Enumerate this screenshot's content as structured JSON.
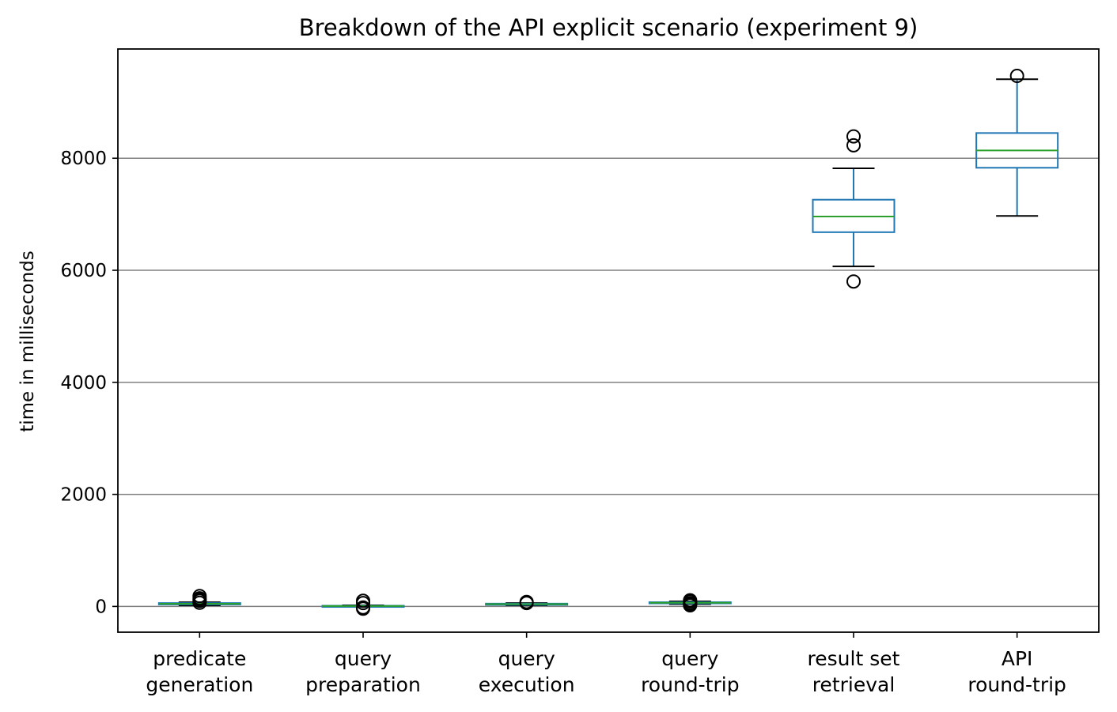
{
  "chart_data": {
    "type": "box",
    "title": "Breakdown of the API explicit scenario (experiment 9)",
    "xlabel": "",
    "ylabel": "time in milliseconds",
    "ylim": [
      -460,
      9950
    ],
    "yticks": [
      0,
      2000,
      4000,
      6000,
      8000
    ],
    "grid": {
      "y": true,
      "x": false
    },
    "colors": {
      "box": "#1f77b4",
      "median": "#2ca02c",
      "whisker": "#1f77b4",
      "cap": "#000000",
      "flier": "#000000",
      "grid": "#808080"
    },
    "categories": [
      [
        "predicate",
        "generation"
      ],
      [
        "query",
        "preparation"
      ],
      [
        "query",
        "execution"
      ],
      [
        "query",
        "round-trip"
      ],
      [
        "result set",
        "retrieval"
      ],
      [
        "API",
        "round-trip"
      ]
    ],
    "boxes": [
      {
        "whisker_low": 20,
        "q1": 35,
        "median": 48,
        "q3": 60,
        "whisker_high": 75,
        "outliers": [
          65,
          100,
          120,
          145,
          185
        ]
      },
      {
        "whisker_low": 2,
        "q1": 5,
        "median": 8,
        "q3": 12,
        "whisker_high": 20,
        "outliers": [
          -40,
          -20,
          60,
          100
        ]
      },
      {
        "whisker_low": 20,
        "q1": 30,
        "median": 40,
        "q3": 50,
        "whisker_high": 60,
        "outliers": [
          60,
          80
        ]
      },
      {
        "whisker_low": 40,
        "q1": 55,
        "median": 65,
        "q3": 75,
        "whisker_high": 90,
        "outliers": [
          20,
          40,
          60,
          90,
          110
        ]
      },
      {
        "whisker_low": 6070,
        "q1": 6680,
        "median": 6960,
        "q3": 7260,
        "whisker_high": 7820,
        "outliers": [
          5800,
          8230,
          8390
        ]
      },
      {
        "whisker_low": 6970,
        "q1": 7830,
        "median": 8140,
        "q3": 8450,
        "whisker_high": 9410,
        "outliers": [
          9470
        ]
      }
    ]
  }
}
